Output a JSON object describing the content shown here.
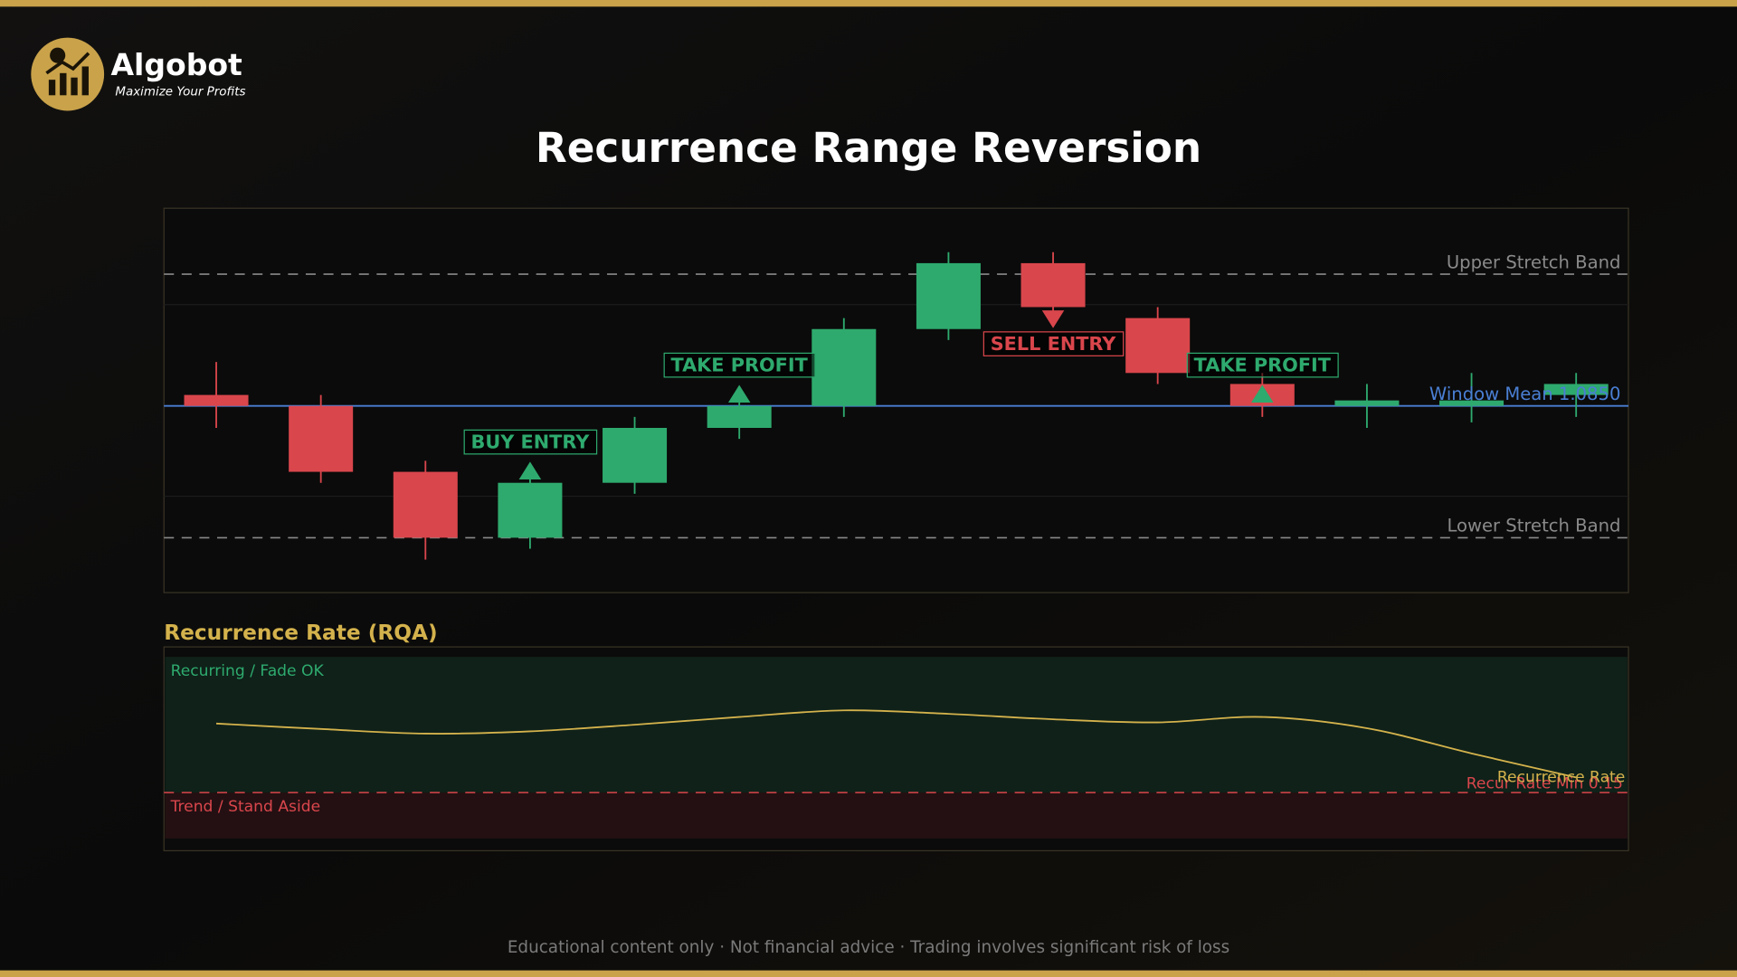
{
  "brand": {
    "name": "Algobot",
    "tagline": "Maximize Your Profits"
  },
  "chart_data": [
    {
      "type": "candlestick",
      "title": "Recurrence Range Reversion",
      "ylim": [
        1.0833,
        1.0868
      ],
      "up_color": "#2eaa6e",
      "down_color": "#d9464c",
      "open": [
        1.0851,
        1.085,
        1.0844,
        1.0838,
        1.0843,
        1.0848,
        1.085,
        1.0857,
        1.0863,
        1.0858,
        1.0852,
        1.085,
        1.085,
        1.0851
      ],
      "high": [
        1.0854,
        1.0851,
        1.0845,
        1.0844,
        1.0849,
        1.0851,
        1.0858,
        1.0864,
        1.0864,
        1.0859,
        1.0853,
        1.0852,
        1.0853,
        1.0853
      ],
      "low": [
        1.0848,
        1.0843,
        1.0836,
        1.0837,
        1.0842,
        1.0847,
        1.0849,
        1.0856,
        1.0858,
        1.0852,
        1.0849,
        1.0848,
        1.08485,
        1.0849
      ],
      "close": [
        1.085,
        1.0844,
        1.0838,
        1.0843,
        1.0848,
        1.085,
        1.0857,
        1.0863,
        1.0859,
        1.0853,
        1.085,
        1.08505,
        1.08505,
        1.0852
      ],
      "bands": [
        {
          "label": "Upper Stretch Band",
          "value": 1.0862,
          "color": "#8a8a8a"
        },
        {
          "label": "Lower Stretch Band",
          "value": 1.0838,
          "color": "#8a8a8a"
        }
      ],
      "mean_line": {
        "label": "Window Mean 1.0850",
        "value": 1.085,
        "color": "#4a7fd4"
      },
      "signals": [
        {
          "label": "BUY ENTRY",
          "at": 3,
          "arrow": "up",
          "color": "#2eaa6e"
        },
        {
          "label": "TAKE PROFIT",
          "at": 5,
          "arrow": "up",
          "color": "#2eaa6e"
        },
        {
          "label": "SELL ENTRY",
          "at": 8,
          "arrow": "down",
          "color": "#d9464c"
        },
        {
          "label": "TAKE PROFIT",
          "at": 10,
          "arrow": "up",
          "color": "#2eaa6e"
        }
      ]
    },
    {
      "type": "line",
      "title": "Recurrence Rate (RQA)",
      "ylim": [
        0,
        0.5
      ],
      "series": [
        {
          "name": "Recurrence Rate",
          "color": "#d4b24c",
          "values": [
            0.328,
            0.314,
            0.302,
            0.308,
            0.325,
            0.345,
            0.362,
            0.353,
            0.339,
            0.331,
            0.345,
            0.316,
            0.251,
            0.189
          ]
        }
      ],
      "threshold": {
        "label": "Recur Rate Min 0.15",
        "value": 0.15,
        "color": "#d9464c"
      },
      "zones": {
        "above": "Recurring / Fade OK",
        "below": "Trend / Stand Aside"
      }
    }
  ],
  "footer": [
    "Educational content only",
    "Not financial advice",
    "Trading involves significant risk of loss"
  ]
}
